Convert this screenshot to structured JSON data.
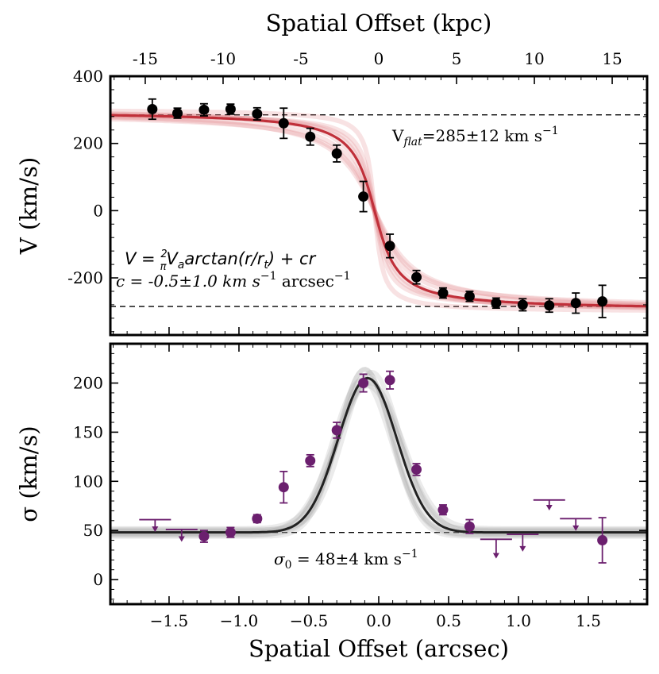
{
  "chart_data": [
    {
      "type": "scatter",
      "panel": "top",
      "title": "Spatial Offset (kpc)",
      "top_axis_ticks": [
        "-15",
        "-10",
        "-5",
        "0",
        "5",
        "10",
        "15"
      ],
      "top_axis_values": [
        -15,
        -10,
        -5,
        0,
        5,
        10,
        15
      ],
      "ylabel": "V (km/s)",
      "xlim": [
        -1.92,
        1.92
      ],
      "ylim": [
        -370,
        400
      ],
      "yticks": [
        "-200",
        "0",
        "200",
        "400"
      ],
      "ytick_values": [
        -200,
        0,
        200,
        400
      ],
      "series": [
        {
          "name": "observed velocity",
          "color": "#000000",
          "x": [
            -1.62,
            -1.44,
            -1.25,
            -1.06,
            -0.87,
            -0.68,
            -0.49,
            -0.3,
            -0.11,
            0.08,
            0.27,
            0.46,
            0.65,
            0.84,
            1.03,
            1.22,
            1.41,
            1.6
          ],
          "y": [
            302,
            290,
            300,
            302,
            288,
            260,
            220,
            170,
            42,
            -105,
            -198,
            -245,
            -255,
            -275,
            -280,
            -282,
            -275,
            -270
          ],
          "err": [
            30,
            15,
            18,
            15,
            18,
            45,
            25,
            25,
            45,
            35,
            20,
            15,
            15,
            15,
            18,
            20,
            30,
            48
          ]
        },
        {
          "name": "arctan model",
          "color": "#c0303a",
          "model": "arctan",
          "Va": 295,
          "rt": 0.12,
          "c": -0.5,
          "x0": -0.03
        }
      ],
      "reference_lines": {
        "vflat": 285,
        "style": "dashed"
      },
      "annotations": {
        "vflat": "V",
        "vflat_sub": "flat",
        "vflat_value": "=285±12 km s",
        "vflat_exp": "−1",
        "formula_lhs": "V = ",
        "formula_frac_num": "2",
        "formula_frac_den": "π",
        "formula_va": "V",
        "formula_va_sub": "a",
        "formula_rhs": "arctan(r/r",
        "formula_rt_sub": "t",
        "formula_tail": ") + cr",
        "c_text": "c = -0.5±1.0 km s",
        "c_exp1": "−1",
        "c_unit": " arcsec",
        "c_exp2": "−1"
      }
    },
    {
      "type": "scatter",
      "panel": "bottom",
      "xlabel": "Spatial Offset (arcsec)",
      "ylabel": "σ (km/s)",
      "xlim": [
        -1.92,
        1.92
      ],
      "ylim": [
        -25,
        240
      ],
      "xticks": [
        "−1.5",
        "−1.0",
        "−0.5",
        "0.0",
        "0.5",
        "1.0",
        "1.5"
      ],
      "xtick_values": [
        -1.5,
        -1.0,
        -0.5,
        0.0,
        0.5,
        1.0,
        1.5
      ],
      "yticks": [
        "0",
        "50",
        "100",
        "150",
        "200"
      ],
      "ytick_values": [
        0,
        50,
        100,
        150,
        200
      ],
      "series": [
        {
          "name": "dispersion measurements",
          "color": "#6b1f6e",
          "x": [
            -1.25,
            -1.06,
            -0.87,
            -0.68,
            -0.49,
            -0.3,
            -0.11,
            0.08,
            0.27,
            0.46,
            0.65,
            1.6
          ],
          "y": [
            44,
            48,
            62,
            94,
            121,
            152,
            200,
            203,
            112,
            71,
            54,
            40
          ],
          "err": [
            6,
            5,
            4,
            16,
            6,
            8,
            9,
            9,
            6,
            5,
            7,
            23
          ]
        },
        {
          "name": "upper limits",
          "color": "#6b1f6e",
          "x": [
            -1.6,
            -1.41,
            0.84,
            1.03,
            1.22,
            1.41
          ],
          "y": [
            61,
            51,
            41,
            46,
            81,
            62
          ],
          "arrow": [
            11,
            11,
            18,
            16,
            9,
            11
          ]
        },
        {
          "name": "gaussian model",
          "color": "#222222",
          "model": "gaussian",
          "sigma0": 48,
          "amp": 157,
          "center": -0.08,
          "width": 0.21
        }
      ],
      "reference_lines": {
        "sigma0": 48,
        "style": "dashed"
      },
      "annotations": {
        "sigma_sym": "σ",
        "sigma_sub": "0",
        "sigma_text": " = 48±4 km s",
        "sigma_exp": "−1"
      }
    }
  ]
}
